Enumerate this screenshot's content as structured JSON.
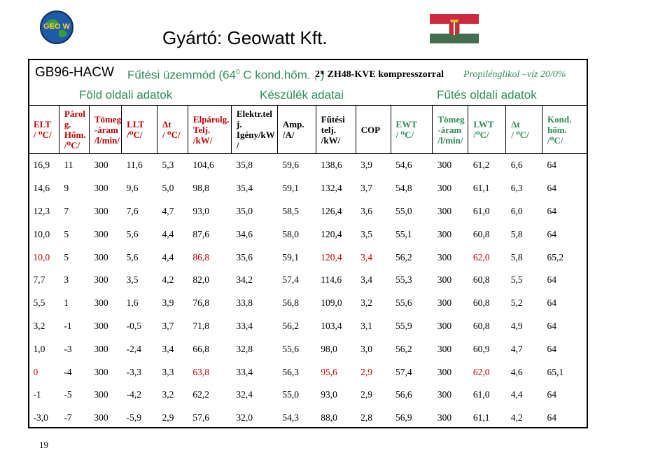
{
  "header": {
    "title": "Gyártó: Geowatt Kft.",
    "logo_text": "GEO W",
    "model": "GB96-HACW",
    "mode_label": "Fűtési üzemmód (64",
    "mode_sup": "0",
    "mode_tail": " C kond.hőm. , )",
    "compressor": "2* ZH48-KVE kompresszorral",
    "fluid": "Propilénglikol –víz 20/0%"
  },
  "sections": {
    "ground": "Föld oldali adatok",
    "device": "Készülék adatai",
    "heating": "Fűtés oldali adatok"
  },
  "columns": [
    {
      "l1": "ELT",
      "l2": "/ ⁰C/",
      "l3": "",
      "l4": "",
      "color": "red"
    },
    {
      "l1": "Párol",
      "l2": "g.",
      "l3": "Hőm.",
      "l4": "/⁰C/",
      "color": "red"
    },
    {
      "l1": "Tömeg",
      "l2": "-áram",
      "l3": "/l/min/",
      "l4": "",
      "color": "red"
    },
    {
      "l1": "LLT",
      "l2": "/⁰C/",
      "l3": "",
      "l4": "",
      "color": "red"
    },
    {
      "l1": "Δt",
      "l2": "/ ⁰C/",
      "l3": "",
      "l4": "",
      "color": "red"
    },
    {
      "l1": "Elpárolg.",
      "l2": "Telj.",
      "l3": "/kW/",
      "l4": "",
      "color": "red"
    },
    {
      "l1": "Elektr.tel",
      "l2": "j.",
      "l3": "Igény/kW",
      "l4": "/",
      "color": "black"
    },
    {
      "l1": "Amp.",
      "l2": "/A/",
      "l3": "",
      "l4": "",
      "color": "black"
    },
    {
      "l1": "Fűtési",
      "l2": "telj.",
      "l3": "/kW/",
      "l4": "",
      "color": "black"
    },
    {
      "l1": "COP",
      "l2": "",
      "l3": "",
      "l4": "",
      "color": "black"
    },
    {
      "l1": "EWT",
      "l2": "/ ⁰C/",
      "l3": "",
      "l4": "",
      "color": "green"
    },
    {
      "l1": "Tömeg",
      "l2": "-áram",
      "l3": "/l/min/",
      "l4": "",
      "color": "green"
    },
    {
      "l1": "LWT",
      "l2": "/⁰C/",
      "l3": "",
      "l4": "",
      "color": "green"
    },
    {
      "l1": "Δt",
      "l2": "/ ⁰C/",
      "l3": "",
      "l4": "",
      "color": "green"
    },
    {
      "l1": "Kond.",
      "l2": "hőm.",
      "l3": "/⁰C/",
      "l4": "",
      "color": "green"
    }
  ],
  "rows": [
    [
      "16,9",
      "11",
      "300",
      "11,6",
      "5,3",
      "104,6",
      "35,8",
      "59,6",
      "138,6",
      "3,9",
      "54,6",
      "300",
      "61,2",
      "6,6",
      "64"
    ],
    [
      "14,6",
      "9",
      "300",
      "9,6",
      "5,0",
      "98,8",
      "35,4",
      "59,1",
      "132,4",
      "3,7",
      "54,8",
      "300",
      "61,1",
      "6,3",
      "64"
    ],
    [
      "12,3",
      "7",
      "300",
      "7,6",
      "4,7",
      "93,0",
      "35,0",
      "58,5",
      "126,4",
      "3,6",
      "55,0",
      "300",
      "61,0",
      "6,0",
      "64"
    ],
    [
      "10,0",
      "5",
      "300",
      "5,6",
      "4,4",
      "87,6",
      "34,6",
      "58,0",
      "120,4",
      "3,5",
      "55,1",
      "300",
      "60,8",
      "5,8",
      "64"
    ],
    [
      "10,0",
      "5",
      "300",
      "5,6",
      "4,4",
      "86,8",
      "35,6",
      "59,1",
      "120,4",
      "3,4",
      "56,2",
      "300",
      "62,0",
      "5,8",
      "65,2"
    ],
    [
      "7,7",
      "3",
      "300",
      "3,5",
      "4,2",
      "82,0",
      "34,2",
      "57,4",
      "114,6",
      "3,4",
      "55,3",
      "300",
      "60,8",
      "5,5",
      "64"
    ],
    [
      "5,5",
      "1",
      "300",
      "1,6",
      "3,9",
      "76,8",
      "33,8",
      "56,8",
      "109,0",
      "3,2",
      "55,6",
      "300",
      "60,8",
      "5,2",
      "64"
    ],
    [
      "3,2",
      "-1",
      "300",
      "-0,5",
      "3,7",
      "71,8",
      "33,4",
      "56,2",
      "103,4",
      "3,1",
      "55,9",
      "300",
      "60,8",
      "4,9",
      "64"
    ],
    [
      "1,0",
      "-3",
      "300",
      "-2,4",
      "3,4",
      "66,8",
      "32,8",
      "55,6",
      "98,0",
      "3,0",
      "56,2",
      "300",
      "60,9",
      "4,7",
      "64"
    ],
    [
      "0",
      "-4",
      "300",
      "-3,3",
      "3,3",
      "63,8",
      "33,4",
      "56,3",
      "95,6",
      "2,9",
      "57,4",
      "300",
      "62,0",
      "4,6",
      "65,1"
    ],
    [
      "-1",
      "-5",
      "300",
      "-4,2",
      "3,2",
      "62,2",
      "32,4",
      "55,0",
      "93,0",
      "2,9",
      "56,6",
      "300",
      "61,0",
      "4,4",
      "64"
    ],
    [
      "-3,0",
      "-7",
      "300",
      "-5,9",
      "2,9",
      "57,6",
      "32,0",
      "54,3",
      "88,0",
      "2,8",
      "56,9",
      "300",
      "61,1",
      "4,2",
      "64"
    ]
  ],
  "highlights": [
    {
      "row": 4,
      "cols": [
        0,
        5,
        8,
        9,
        12
      ]
    },
    {
      "row": 9,
      "cols": [
        0,
        5,
        8,
        9,
        12
      ]
    }
  ],
  "colors": {
    "red": "#c00000",
    "green": "#2e8b57",
    "highlight": "#c00000"
  },
  "footer": {
    "page_number": "19"
  }
}
